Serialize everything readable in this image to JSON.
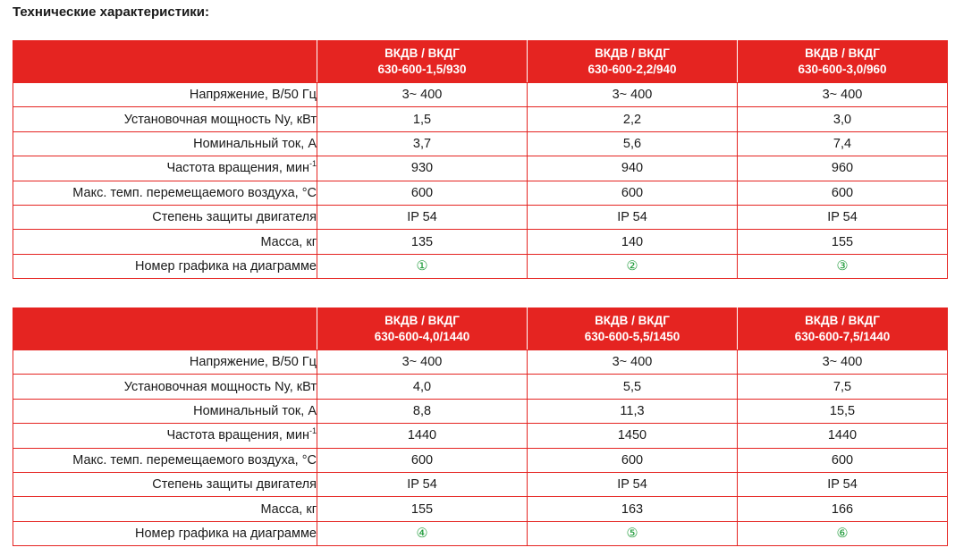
{
  "title": "Технические характеристики:",
  "row_labels": {
    "voltage": "Напряжение, В/50 Гц",
    "power": "Установочная мощность Ny, кВт",
    "current": "Номинальный ток, А",
    "rpm": "Частота вращения, мин",
    "rpm_sup": "-1",
    "max_temp": "Макс. темп. перемещаемого воздуха, °С",
    "protection": "Степень защиты двигателя",
    "mass": "Масса, кг",
    "graph": "Номер графика на диаграмме"
  },
  "tables": [
    {
      "models": [
        {
          "line1": "ВКДВ / ВКДГ",
          "line2": "630-600-1,5/930",
          "voltage": "3~ 400",
          "power": "1,5",
          "current": "3,7",
          "rpm": "930",
          "max_temp": "600",
          "protection": "IP 54",
          "mass": "135",
          "graph": "①"
        },
        {
          "line1": "ВКДВ / ВКДГ",
          "line2": "630-600-2,2/940",
          "voltage": "3~ 400",
          "power": "2,2",
          "current": "5,6",
          "rpm": "940",
          "max_temp": "600",
          "protection": "IP 54",
          "mass": "140",
          "graph": "②"
        },
        {
          "line1": "ВКДВ / ВКДГ",
          "line2": "630-600-3,0/960",
          "voltage": "3~ 400",
          "power": "3,0",
          "current": "7,4",
          "rpm": "960",
          "max_temp": "600",
          "protection": "IP 54",
          "mass": "155",
          "graph": "③"
        }
      ]
    },
    {
      "models": [
        {
          "line1": "ВКДВ / ВКДГ",
          "line2": "630-600-4,0/1440",
          "voltage": "3~ 400",
          "power": "4,0",
          "current": "8,8",
          "rpm": "1440",
          "max_temp": "600",
          "protection": "IP 54",
          "mass": "155",
          "graph": "④"
        },
        {
          "line1": "ВКДВ / ВКДГ",
          "line2": "630-600-5,5/1450",
          "voltage": "3~ 400",
          "power": "5,5",
          "current": "11,3",
          "rpm": "1450",
          "max_temp": "600",
          "protection": "IP 54",
          "mass": "163",
          "graph": "⑤"
        },
        {
          "line1": "ВКДВ / ВКДГ",
          "line2": "630-600-7,5/1440",
          "voltage": "3~ 400",
          "power": "7,5",
          "current": "15,5",
          "rpm": "1440",
          "max_temp": "600",
          "protection": "IP 54",
          "mass": "166",
          "graph": "⑥"
        }
      ]
    }
  ],
  "colors": {
    "header_bg": "#e52421",
    "border": "#e52421",
    "graph_number": "#1f9b3a"
  }
}
